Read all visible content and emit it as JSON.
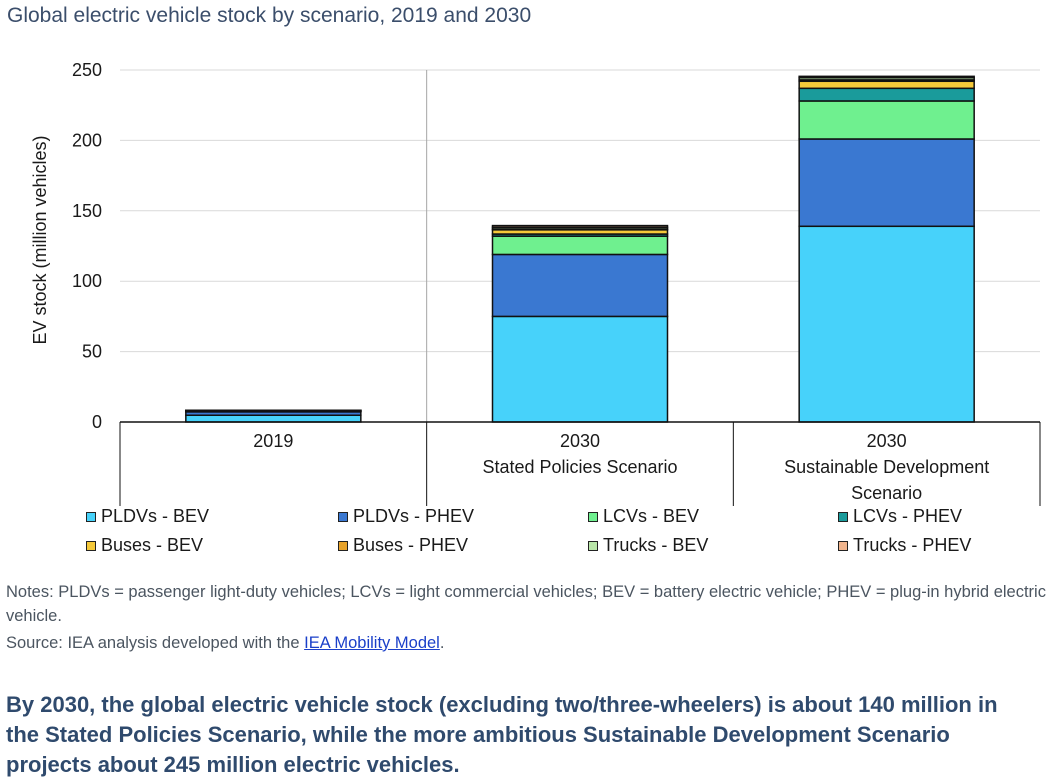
{
  "title": "Global electric vehicle stock by scenario, 2019 and 2030",
  "notes": "Notes: PLDVs = passenger light-duty vehicles; LCVs = light commercial vehicles; BEV = battery electric vehicle; PHEV = plug-in hybrid electric vehicle.",
  "source": {
    "prefix": "Source: IEA analysis developed with the ",
    "link_text": "IEA Mobility Model",
    "suffix": "."
  },
  "caption": "By 2030, the global electric vehicle stock (excluding two/three-wheelers) is about 140 million in the Stated Policies Scenario, while the more ambitious Sustainable Development Scenario projects about 245 million electric vehicles.",
  "colors": {
    "PLDVs - BEV": "#47d2fa",
    "PLDVs - PHEV": "#3a78d1",
    "LCVs - BEV": "#6ff08f",
    "LCVs - PHEV": "#1a9b9b",
    "Buses - BEV": "#f5c93a",
    "Buses - PHEV": "#e8a32a",
    "Trucks - BEV": "#b9e6a8",
    "Trucks - PHEV": "#f0b48c"
  },
  "chart_data": {
    "type": "bar",
    "stacked": true,
    "ylabel": "EV stock (million vehicles)",
    "xlabel": "",
    "ylim": [
      0,
      250
    ],
    "yticks": [
      0,
      50,
      100,
      150,
      200,
      250
    ],
    "grid": true,
    "legend_position": "bottom",
    "categories": [
      {
        "lines": [
          "2019"
        ]
      },
      {
        "lines": [
          "2030",
          "Stated Policies Scenario"
        ]
      },
      {
        "lines": [
          "2030",
          "Sustainable Development",
          "Scenario"
        ]
      }
    ],
    "series": [
      {
        "name": "PLDVs - BEV",
        "values": [
          4.8,
          75,
          139
        ]
      },
      {
        "name": "PLDVs - PHEV",
        "values": [
          2.4,
          44,
          62
        ]
      },
      {
        "name": "LCVs - BEV",
        "values": [
          0.4,
          13,
          27
        ]
      },
      {
        "name": "LCVs - PHEV",
        "values": [
          0.1,
          1.5,
          9
        ]
      },
      {
        "name": "Buses - BEV",
        "values": [
          0.5,
          3,
          5
        ]
      },
      {
        "name": "Buses - PHEV",
        "values": [
          0.05,
          0.6,
          1
        ]
      },
      {
        "name": "Trucks - BEV",
        "values": [
          0.05,
          1.2,
          1.5
        ]
      },
      {
        "name": "Trucks - PHEV",
        "values": [
          0.05,
          1.2,
          1
        ]
      }
    ]
  }
}
